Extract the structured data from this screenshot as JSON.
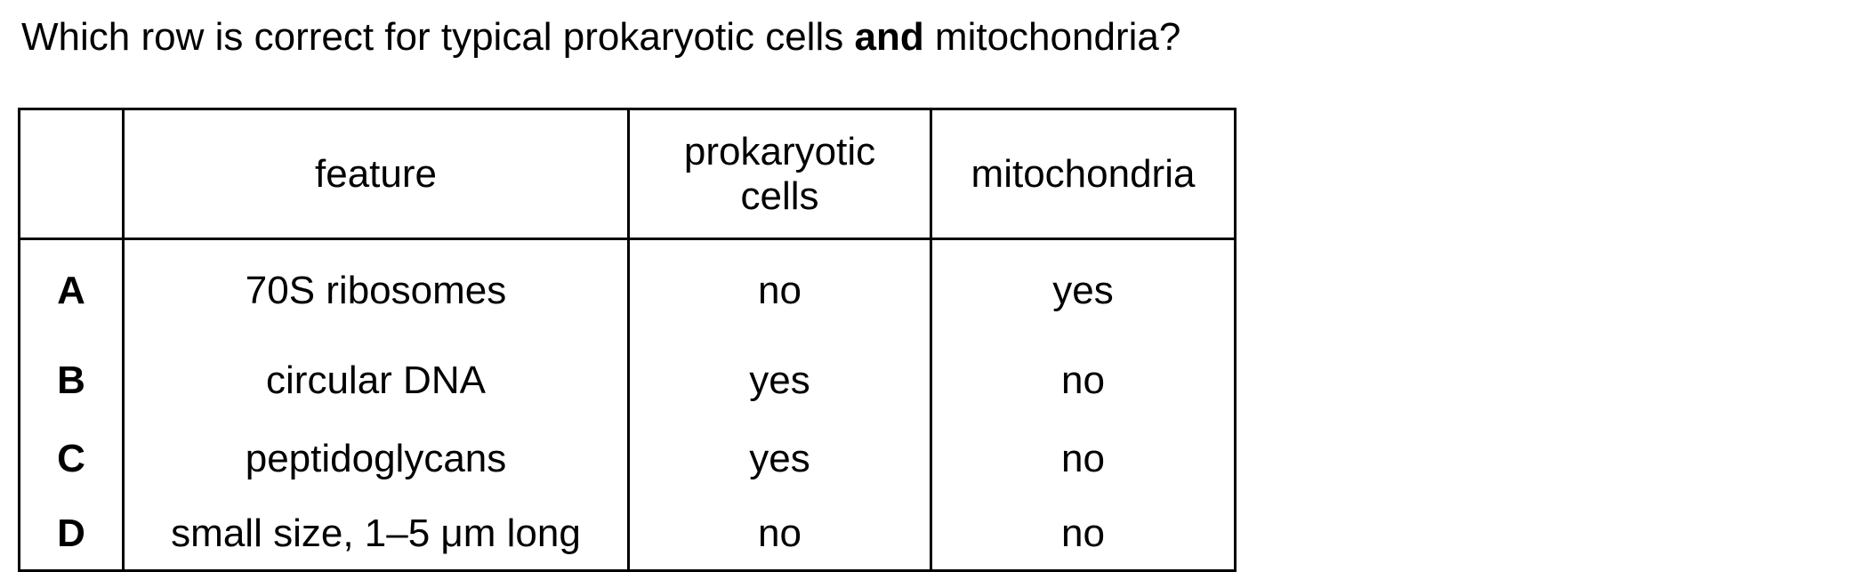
{
  "question": {
    "prefix": "Which row is correct for typical prokaryotic cells ",
    "emphasis": "and",
    "suffix": " mitochondria?"
  },
  "table": {
    "headers": {
      "key": "",
      "feature": "feature",
      "prokaryotic_line1": "prokaryotic",
      "prokaryotic_line2": "cells",
      "mitochondria": "mitochondria"
    },
    "rows": [
      {
        "key": "A",
        "feature": "70S ribosomes",
        "prokaryotic": "no",
        "mitochondria": "yes"
      },
      {
        "key": "B",
        "feature": "circular DNA",
        "prokaryotic": "yes",
        "mitochondria": "no"
      },
      {
        "key": "C",
        "feature": "peptidoglycans",
        "prokaryotic": "yes",
        "mitochondria": "no"
      },
      {
        "key": "D",
        "feature": "small size, 1–5 μm long",
        "prokaryotic": "no",
        "mitochondria": "no"
      }
    ]
  }
}
